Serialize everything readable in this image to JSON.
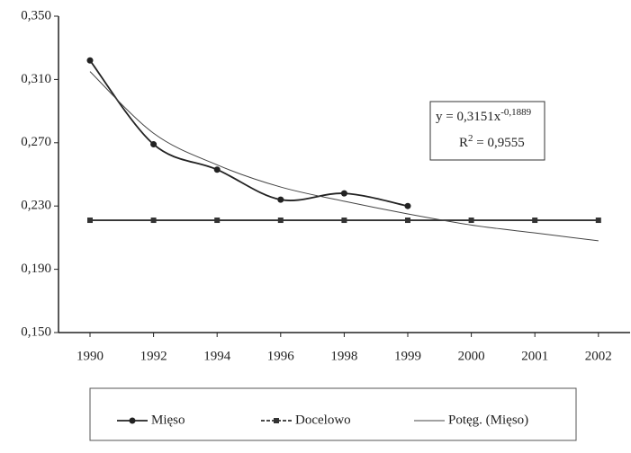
{
  "chart_data": {
    "type": "line",
    "categories": [
      "1990",
      "1992",
      "1994",
      "1996",
      "1998",
      "1999",
      "2000",
      "2001",
      "2002"
    ],
    "series": [
      {
        "name": "Mięso",
        "color": "#222222",
        "marker": "circle",
        "values": [
          0.322,
          0.269,
          0.253,
          0.234,
          0.238,
          0.23,
          null,
          null,
          null
        ]
      },
      {
        "name": "Docelowo",
        "color": "#333333",
        "marker": "square",
        "values": [
          0.221,
          0.221,
          0.221,
          0.221,
          0.221,
          0.221,
          0.221,
          0.221,
          0.221
        ]
      },
      {
        "name": "Potęg. (Mięso)",
        "color": "#444444",
        "marker": "none",
        "values": [
          0.315,
          0.276,
          0.256,
          0.242,
          0.233,
          0.225,
          0.218,
          0.213,
          0.208
        ]
      }
    ],
    "ylim": [
      0.15,
      0.35
    ],
    "yticks": [
      {
        "value": 0.15,
        "label": "0,150"
      },
      {
        "value": 0.19,
        "label": "0,190"
      },
      {
        "value": 0.23,
        "label": "0,230"
      },
      {
        "value": 0.27,
        "label": "0,270"
      },
      {
        "value": 0.31,
        "label": "0,310"
      },
      {
        "value": 0.35,
        "label": "0,350"
      }
    ],
    "annotation": {
      "equation": "y = 0,3151x",
      "exponent": "-0,1889",
      "r_label": "R",
      "r_power": "2",
      "r_value": " = 0,9555"
    },
    "legend": "bottom",
    "grid": false
  }
}
